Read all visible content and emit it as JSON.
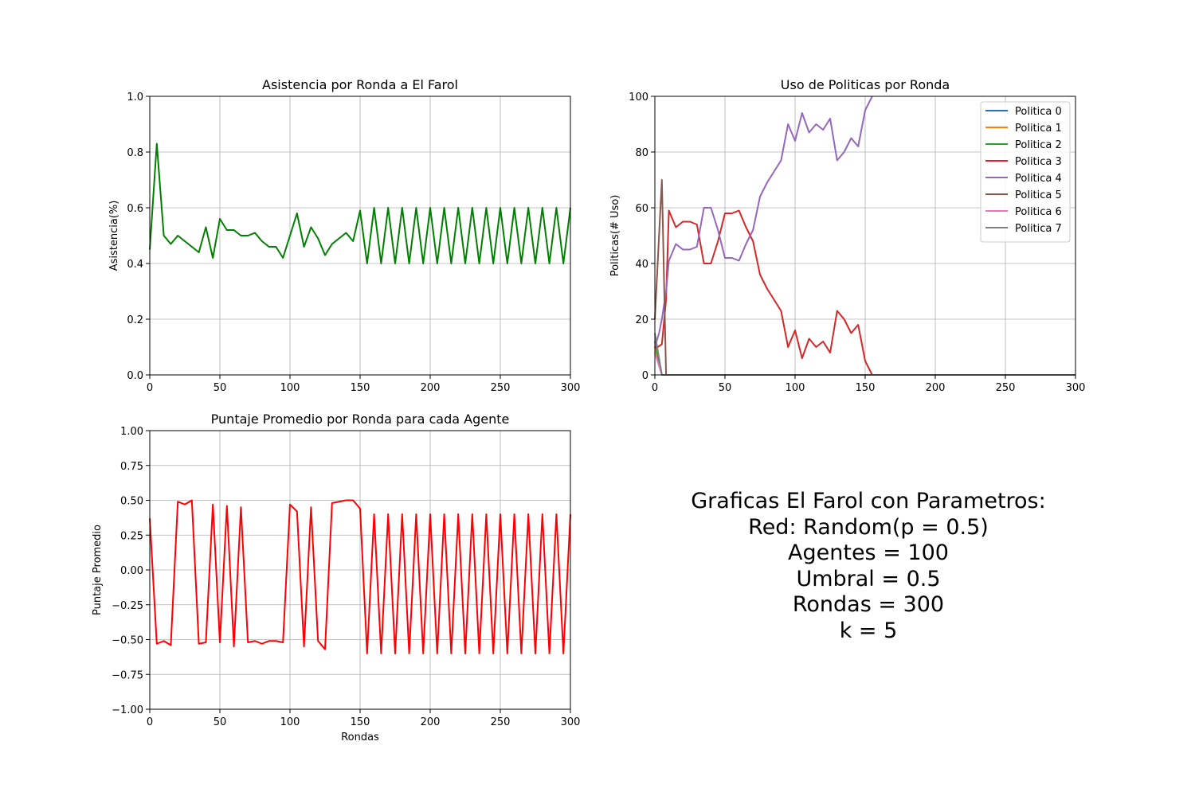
{
  "info_lines": [
    "Graficas El Farol con Parametros:",
    "Red: Random(p = 0.5)",
    "Agentes = 100",
    "Umbral = 0.5",
    "Rondas = 300",
    "k = 5"
  ],
  "chart_data": [
    {
      "type": "line",
      "title": "Asistencia por Ronda a El Farol",
      "xlabel": "",
      "ylabel": "Asistencia(%)",
      "xlim": [
        0,
        300
      ],
      "ylim": [
        0,
        1
      ],
      "xticks": [
        0,
        50,
        100,
        150,
        200,
        250,
        300
      ],
      "yticks": [
        0.0,
        0.2,
        0.4,
        0.6,
        0.8,
        1.0
      ],
      "ytick_labels": [
        "0.0",
        "0.2",
        "0.4",
        "0.6",
        "0.8",
        "1.0"
      ],
      "grid": true,
      "series": [
        {
          "color": "#008000",
          "x": [
            0,
            5,
            10,
            15,
            20,
            25,
            30,
            35,
            40,
            45,
            50,
            55,
            60,
            65,
            70,
            75,
            80,
            85,
            90,
            95,
            100,
            105,
            110,
            115,
            120,
            125,
            130,
            135,
            140,
            145,
            150,
            155,
            160,
            165,
            170,
            175,
            180,
            185,
            190,
            195,
            200,
            205,
            210,
            215,
            220,
            225,
            230,
            235,
            240,
            245,
            250,
            255,
            260,
            265,
            270,
            275,
            280,
            285,
            290,
            295,
            300
          ],
          "y": [
            0.45,
            0.83,
            0.5,
            0.47,
            0.5,
            0.48,
            0.46,
            0.44,
            0.53,
            0.42,
            0.56,
            0.52,
            0.52,
            0.5,
            0.5,
            0.51,
            0.48,
            0.46,
            0.46,
            0.42,
            0.5,
            0.58,
            0.46,
            0.53,
            0.49,
            0.43,
            0.47,
            0.49,
            0.51,
            0.48,
            0.59,
            0.4,
            0.6,
            0.4,
            0.6,
            0.4,
            0.6,
            0.4,
            0.6,
            0.4,
            0.6,
            0.4,
            0.6,
            0.4,
            0.6,
            0.4,
            0.6,
            0.4,
            0.6,
            0.4,
            0.6,
            0.4,
            0.6,
            0.4,
            0.6,
            0.4,
            0.6,
            0.4,
            0.6,
            0.4,
            0.6
          ]
        }
      ]
    },
    {
      "type": "line",
      "title": "Uso de Politicas por Ronda",
      "xlabel": "",
      "ylabel": "Politicas(# Uso)",
      "xlim": [
        0,
        300
      ],
      "ylim": [
        0,
        100
      ],
      "xticks": [
        0,
        50,
        100,
        150,
        200,
        250,
        300
      ],
      "yticks": [
        0,
        20,
        40,
        60,
        80,
        100
      ],
      "ytick_labels": [
        "0",
        "20",
        "40",
        "60",
        "80",
        "100"
      ],
      "grid": true,
      "legend": "top-right",
      "series": [
        {
          "name": "Politica 0",
          "color": "#1f77b4",
          "x": [
            0,
            5,
            10,
            300
          ],
          "y": [
            12,
            0,
            0,
            0
          ]
        },
        {
          "name": "Politica 1",
          "color": "#ff7f0e",
          "x": [
            0,
            5,
            10,
            300
          ],
          "y": [
            10,
            0,
            0,
            0
          ]
        },
        {
          "name": "Politica 2",
          "color": "#2ca02c",
          "x": [
            0,
            5,
            10,
            300
          ],
          "y": [
            12,
            0,
            0,
            0
          ]
        },
        {
          "name": "Politica 3",
          "color": "#d62728",
          "x": [
            0,
            2,
            5,
            8,
            10,
            15,
            20,
            25,
            30,
            35,
            40,
            45,
            50,
            55,
            60,
            65,
            70,
            75,
            80,
            85,
            90,
            95,
            100,
            105,
            110,
            115,
            120,
            125,
            130,
            135,
            140,
            145,
            150,
            155,
            160,
            300
          ],
          "y": [
            10,
            10,
            11,
            27,
            59,
            53,
            55,
            55,
            54,
            40,
            40,
            48,
            58,
            58,
            59,
            53,
            48,
            36,
            31,
            27,
            23,
            10,
            16,
            6,
            13,
            10,
            12,
            8,
            23,
            20,
            15,
            18,
            5,
            0,
            0,
            0
          ]
        },
        {
          "name": "Politica 4",
          "color": "#9467bd",
          "x": [
            0,
            3,
            5,
            8,
            10,
            15,
            20,
            25,
            30,
            35,
            40,
            45,
            50,
            55,
            60,
            65,
            70,
            75,
            80,
            85,
            90,
            95,
            100,
            105,
            110,
            115,
            120,
            125,
            130,
            135,
            140,
            145,
            150,
            155
          ],
          "y": [
            10,
            15,
            20,
            30,
            41,
            47,
            45,
            45,
            46,
            60,
            60,
            52,
            42,
            42,
            41,
            47,
            52,
            64,
            69,
            73,
            77,
            90,
            84,
            94,
            87,
            90,
            88,
            92,
            77,
            80,
            85,
            82,
            95,
            100
          ]
        },
        {
          "name": "Politica 5",
          "color": "#8c564b",
          "x": [
            0,
            5,
            8,
            10,
            300
          ],
          "y": [
            20,
            70,
            0,
            0,
            0
          ]
        },
        {
          "name": "Politica 6",
          "color": "#e377c2",
          "x": [
            0,
            5,
            10,
            300
          ],
          "y": [
            8,
            0,
            0,
            0
          ]
        },
        {
          "name": "Politica 7",
          "color": "#7f7f7f",
          "x": [
            0,
            5,
            10,
            300
          ],
          "y": [
            15,
            0,
            0,
            0
          ]
        }
      ]
    },
    {
      "type": "line",
      "title": "Puntaje Promedio por Ronda para cada Agente",
      "xlabel": "Rondas",
      "ylabel": "Puntaje Promedio",
      "xlim": [
        0,
        300
      ],
      "ylim": [
        -1,
        1
      ],
      "xticks": [
        0,
        50,
        100,
        150,
        200,
        250,
        300
      ],
      "yticks": [
        -1.0,
        -0.75,
        -0.5,
        -0.25,
        0.0,
        0.25,
        0.5,
        0.75,
        1.0
      ],
      "ytick_labels": [
        "−1.00",
        "−0.75",
        "−0.50",
        "−0.25",
        "0.00",
        "0.25",
        "0.50",
        "0.75",
        "1.00"
      ],
      "grid": true,
      "series": [
        {
          "color": "#ff0000",
          "x": [
            0,
            5,
            10,
            15,
            20,
            25,
            30,
            35,
            40,
            45,
            50,
            55,
            60,
            65,
            70,
            75,
            80,
            85,
            90,
            95,
            100,
            105,
            110,
            115,
            120,
            125,
            130,
            135,
            140,
            145,
            150,
            155,
            160,
            165,
            170,
            175,
            180,
            185,
            190,
            195,
            200,
            205,
            210,
            215,
            220,
            225,
            230,
            235,
            240,
            245,
            250,
            255,
            260,
            265,
            270,
            275,
            280,
            285,
            290,
            295,
            300
          ],
          "y": [
            0.37,
            -0.53,
            -0.51,
            -0.54,
            0.49,
            0.47,
            0.5,
            -0.53,
            -0.52,
            0.47,
            -0.52,
            0.46,
            -0.55,
            0.45,
            -0.52,
            -0.51,
            -0.53,
            -0.51,
            -0.51,
            -0.52,
            0.47,
            0.42,
            -0.55,
            0.45,
            -0.51,
            -0.57,
            0.48,
            0.49,
            0.5,
            0.5,
            0.44,
            -0.6,
            0.4,
            -0.6,
            0.4,
            -0.6,
            0.4,
            -0.6,
            0.4,
            -0.6,
            0.4,
            -0.6,
            0.4,
            -0.6,
            0.4,
            -0.6,
            0.4,
            -0.6,
            0.4,
            -0.6,
            0.4,
            -0.6,
            0.4,
            -0.6,
            0.4,
            -0.6,
            0.4,
            -0.6,
            0.4,
            -0.6,
            0.4
          ]
        }
      ]
    }
  ]
}
